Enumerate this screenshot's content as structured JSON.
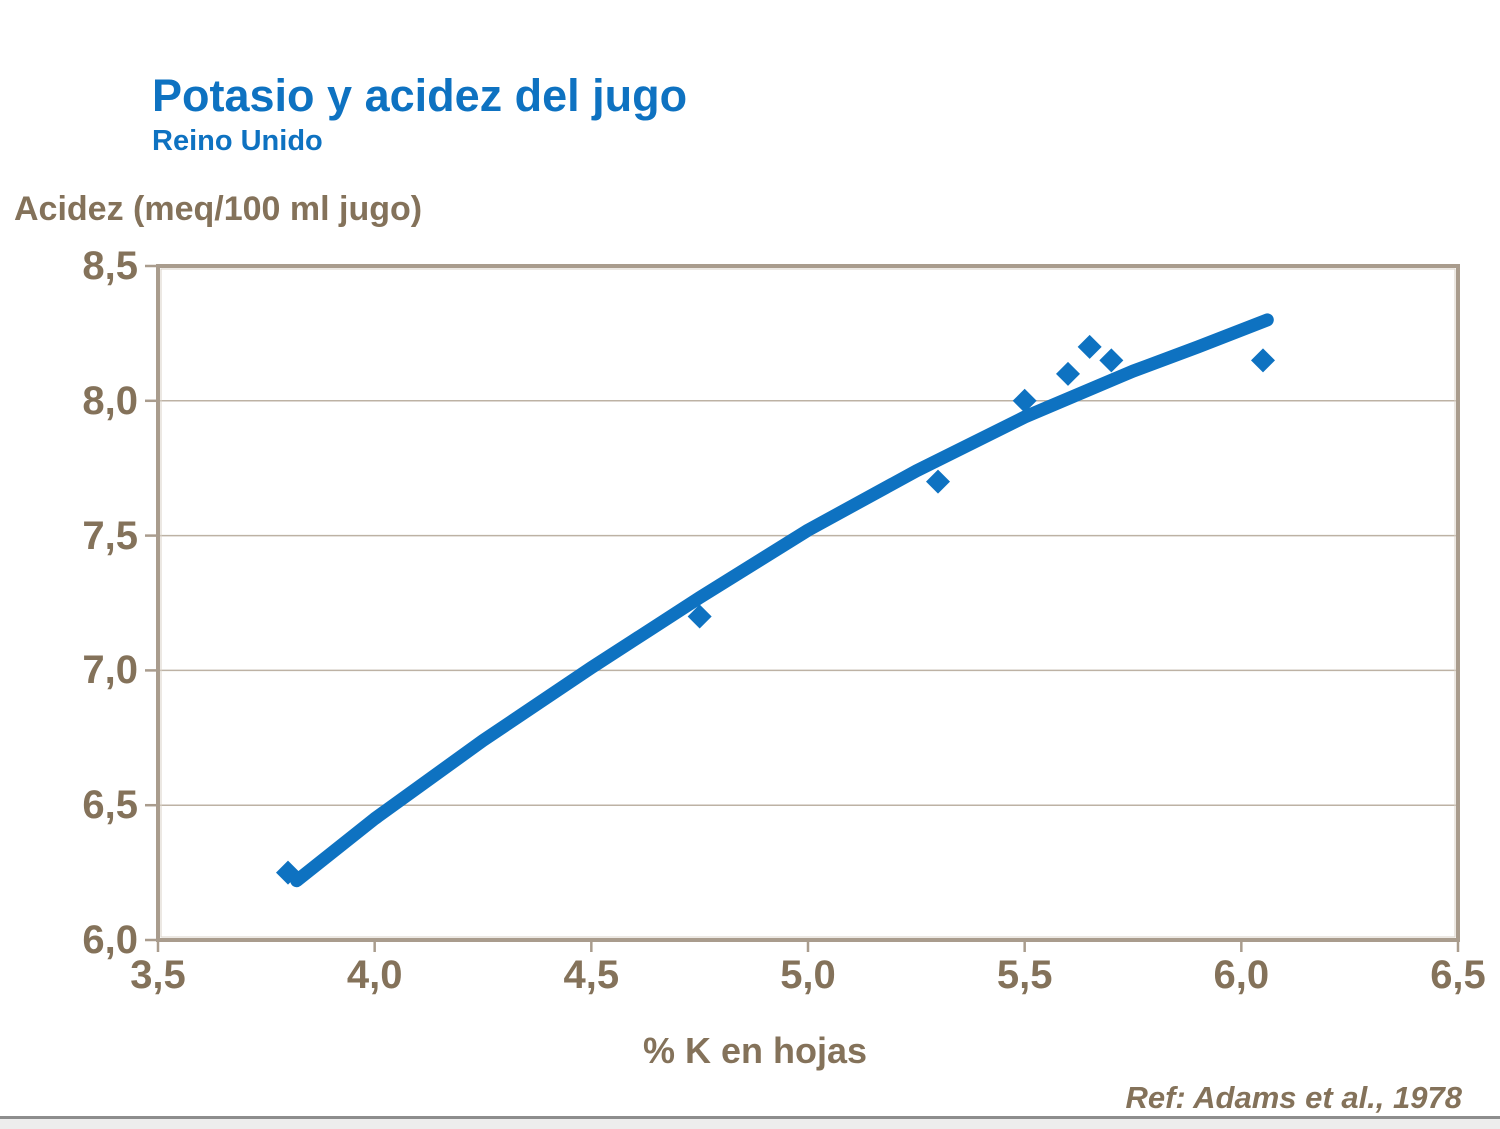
{
  "header": {
    "title": "Potasio y acidez del jugo",
    "subtitle": "Reino Unido"
  },
  "footer": {
    "reference": "Ref: Adams et al., 1978"
  },
  "colors": {
    "accent_blue": "#0E72C1",
    "text_brown": "#84725A",
    "axis_border": "#A99C8D",
    "gridline": "#BDB2A4",
    "bottom_rule": "#8D8D8D",
    "bottom_rule_bg": "#EDEDED",
    "background": "#FFFFFF"
  },
  "chart_data": {
    "type": "scatter",
    "title": "Potasio y acidez del jugo",
    "subtitle": "Reino Unido",
    "xlabel": "% K en hojas",
    "ylabel": "Acidez (meq/100 ml jugo)",
    "xlim": [
      3.5,
      6.5
    ],
    "ylim": [
      6.0,
      8.5
    ],
    "grid": "horizontal-only",
    "legend": "none",
    "x_tick_labels": [
      "3,5",
      "4,0",
      "4,5",
      "5,0",
      "5,5",
      "6,0",
      "6,5"
    ],
    "x_tick_values": [
      3.5,
      4.0,
      4.5,
      5.0,
      5.5,
      6.0,
      6.5
    ],
    "y_tick_labels": [
      "8,5",
      "8,0",
      "7,5",
      "7,0",
      "6,5",
      "6,0"
    ],
    "y_tick_values": [
      8.5,
      8.0,
      7.5,
      7.0,
      6.5,
      6.0
    ],
    "series": [
      {
        "name": "observed-points",
        "marker": "diamond",
        "points": [
          [
            3.8,
            6.25
          ],
          [
            4.75,
            7.2
          ],
          [
            5.3,
            7.7
          ],
          [
            5.5,
            8.0
          ],
          [
            5.6,
            8.1
          ],
          [
            5.65,
            8.2
          ],
          [
            5.7,
            8.15
          ],
          [
            6.05,
            8.15
          ]
        ]
      },
      {
        "name": "trend-curve",
        "marker": "none",
        "points": [
          [
            3.82,
            6.22
          ],
          [
            4.0,
            6.45
          ],
          [
            4.25,
            6.74
          ],
          [
            4.5,
            7.01
          ],
          [
            4.75,
            7.27
          ],
          [
            5.0,
            7.52
          ],
          [
            5.25,
            7.74
          ],
          [
            5.5,
            7.94
          ],
          [
            5.75,
            8.11
          ],
          [
            5.9,
            8.2
          ],
          [
            6.06,
            8.3
          ]
        ]
      }
    ],
    "annotation": "Ref: Adams et al., 1978"
  }
}
